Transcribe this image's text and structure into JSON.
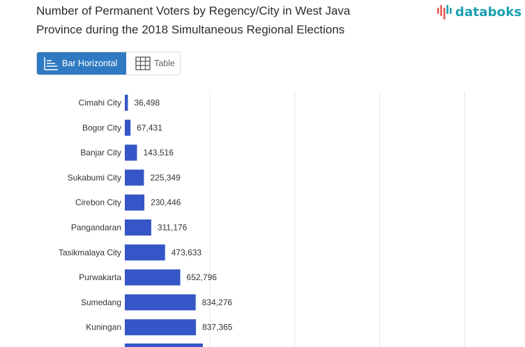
{
  "header": {
    "title_line1": "Number of Permanent Voters by Regency/City in West Java",
    "title_line2": "Province during the 2018 Simultaneous Regional Elections",
    "logo_text": "databoks"
  },
  "view_toggle": {
    "options": [
      {
        "label": "Bar Horizontal",
        "icon": "bar-horizontal-icon",
        "active": true
      },
      {
        "label": "Table",
        "icon": "table-grid-icon",
        "active": false
      }
    ]
  },
  "colors": {
    "bar": "#3556c6",
    "accent": "#2f7ac2",
    "logo_teal": "#18a0b0",
    "logo_red": "#e2574c",
    "grid": "#e6e6e6"
  },
  "chart_data": {
    "type": "bar",
    "orientation": "horizontal",
    "categories": [
      "Cimahi City",
      "Bogor City",
      "Banjar City",
      "Sukabumi City",
      "Cirebon City",
      "Pangandaran",
      "Tasikmalaya City",
      "Purwakarta",
      "Sumedang",
      "Kuningan"
    ],
    "values": [
      36498,
      67431,
      143516,
      225349,
      230446,
      311176,
      473633,
      652796,
      834276,
      837365
    ],
    "value_labels": [
      "36,498",
      "67,431",
      "143,516",
      "225,349",
      "230,446",
      "311,176",
      "473,633",
      "652,796",
      "834,276",
      "837,365"
    ],
    "xlim": [
      0,
      4000000
    ],
    "grid": true
  }
}
